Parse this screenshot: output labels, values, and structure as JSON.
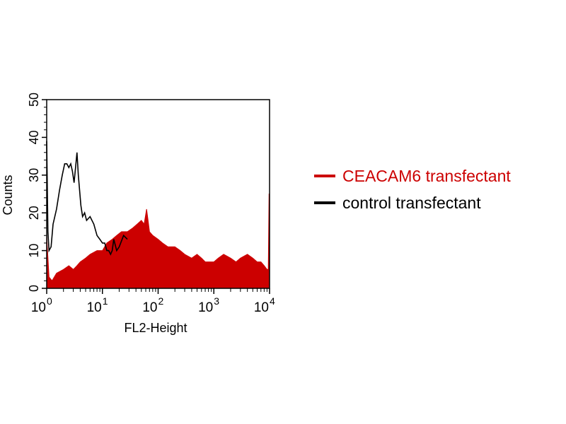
{
  "chart_data": {
    "type": "area",
    "xlabel": "FL2-Height",
    "ylabel": "Counts",
    "xscale": "log",
    "xlim": [
      1,
      10000
    ],
    "ylim": [
      0,
      50
    ],
    "x_ticks": [
      {
        "base": "10",
        "exp": "0"
      },
      {
        "base": "10",
        "exp": "1"
      },
      {
        "base": "10",
        "exp": "2"
      },
      {
        "base": "10",
        "exp": "3"
      },
      {
        "base": "10",
        "exp": "4"
      }
    ],
    "y_ticks": [
      "0",
      "10",
      "20",
      "30",
      "40",
      "50"
    ],
    "grid": false,
    "legend_position": "right",
    "series": [
      {
        "name": "CEACAM6 transfectant",
        "color": "#cc0000",
        "style": "filled",
        "x": [
          1,
          1.1,
          1.25,
          1.5,
          2,
          2.5,
          3,
          3.5,
          4,
          5,
          6,
          8,
          10,
          12,
          15,
          18,
          22,
          28,
          35,
          42,
          50,
          56,
          62,
          66,
          70,
          80,
          100,
          120,
          150,
          200,
          250,
          300,
          400,
          500,
          600,
          700,
          800,
          1000,
          1200,
          1500,
          2000,
          2500,
          3000,
          4000,
          5000,
          6000,
          7000,
          8000,
          9000,
          9500,
          9800,
          9950
        ],
        "y": [
          14,
          3,
          2,
          4,
          5,
          6,
          5,
          6,
          7,
          8,
          9,
          10,
          10,
          12,
          13,
          14,
          15,
          15,
          16,
          17,
          18,
          17,
          21,
          18,
          15,
          14,
          13,
          12,
          11,
          11,
          10,
          9,
          8,
          9,
          8,
          7,
          7,
          7,
          8,
          9,
          8,
          7,
          8,
          9,
          8,
          7,
          7,
          6,
          5,
          5,
          25,
          25
        ]
      },
      {
        "name": "control transfectant",
        "color": "#000000",
        "style": "line",
        "x": [
          1,
          1.05,
          1.1,
          1.2,
          1.3,
          1.5,
          1.7,
          1.9,
          2.1,
          2.3,
          2.5,
          2.7,
          2.9,
          3.1,
          3.3,
          3.5,
          3.7,
          3.9,
          4.1,
          4.4,
          4.8,
          5.2,
          6,
          7,
          8,
          9,
          10,
          11,
          12,
          13,
          14,
          15,
          16,
          18,
          20,
          24,
          28
        ],
        "y": [
          39,
          15,
          10,
          11,
          17,
          21,
          26,
          30,
          33,
          33,
          32,
          33,
          31,
          28,
          32,
          36,
          30,
          26,
          22,
          19,
          20,
          18,
          19,
          17,
          14,
          13,
          12,
          12,
          10,
          10,
          9,
          10,
          13,
          10,
          11,
          14,
          13
        ]
      }
    ]
  }
}
